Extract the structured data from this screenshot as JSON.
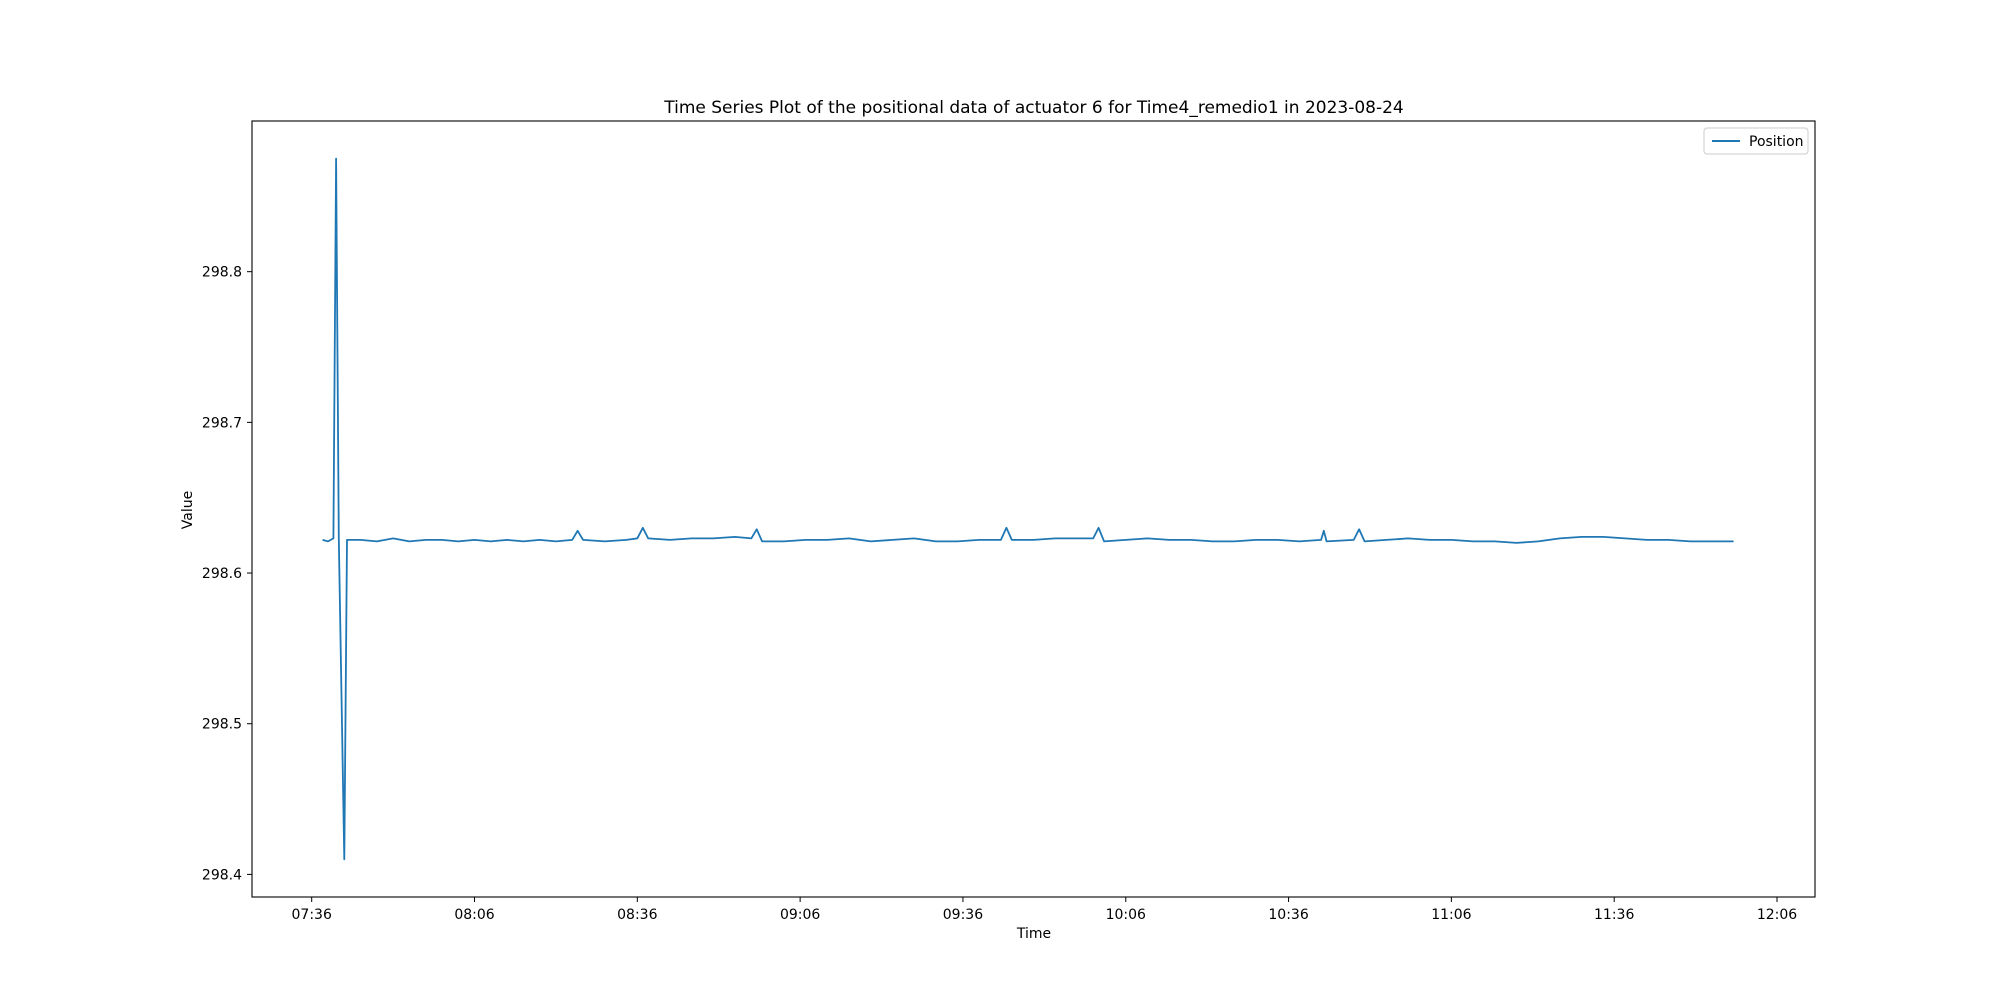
{
  "chart_data": {
    "type": "line",
    "title": "Time Series Plot of the positional data of actuator 6 for Time4_remedio1 in 2023-08-24",
    "xlabel": "Time",
    "ylabel": "Value",
    "xlim": [
      "07:25",
      "12:13"
    ],
    "ylim": [
      298.385,
      298.9
    ],
    "x_ticks": [
      "07:36",
      "08:06",
      "08:36",
      "09:06",
      "09:36",
      "10:06",
      "10:36",
      "11:06",
      "11:36",
      "12:06"
    ],
    "y_ticks": [
      "298.4",
      "298.5",
      "298.6",
      "298.7",
      "298.8"
    ],
    "grid": false,
    "legend": {
      "position": "top-right",
      "entries": [
        "Position"
      ]
    },
    "line_color": "#1f77b4",
    "series": [
      {
        "name": "Position",
        "points": [
          [
            "07:38",
            298.622
          ],
          [
            "07:39",
            298.621
          ],
          [
            "07:40",
            298.623
          ],
          [
            "07:40:30",
            298.875
          ],
          [
            "07:41",
            298.623
          ],
          [
            "07:42",
            298.41
          ],
          [
            "07:42:30",
            298.622
          ],
          [
            "07:45",
            298.622
          ],
          [
            "07:48",
            298.621
          ],
          [
            "07:51",
            298.623
          ],
          [
            "07:54",
            298.621
          ],
          [
            "07:57",
            298.622
          ],
          [
            "08:00",
            298.622
          ],
          [
            "08:03",
            298.621
          ],
          [
            "08:06",
            298.622
          ],
          [
            "08:09",
            298.621
          ],
          [
            "08:12",
            298.622
          ],
          [
            "08:15",
            298.621
          ],
          [
            "08:18",
            298.622
          ],
          [
            "08:21",
            298.621
          ],
          [
            "08:24",
            298.622
          ],
          [
            "08:25",
            298.628
          ],
          [
            "08:26",
            298.622
          ],
          [
            "08:30",
            298.621
          ],
          [
            "08:34",
            298.622
          ],
          [
            "08:36",
            298.623
          ],
          [
            "08:37",
            298.63
          ],
          [
            "08:38",
            298.623
          ],
          [
            "08:42",
            298.622
          ],
          [
            "08:46",
            298.623
          ],
          [
            "08:50",
            298.623
          ],
          [
            "08:54",
            298.624
          ],
          [
            "08:57",
            298.623
          ],
          [
            "08:58",
            298.629
          ],
          [
            "08:59",
            298.621
          ],
          [
            "09:03",
            298.621
          ],
          [
            "09:07",
            298.622
          ],
          [
            "09:11",
            298.622
          ],
          [
            "09:15",
            298.623
          ],
          [
            "09:19",
            298.621
          ],
          [
            "09:23",
            298.622
          ],
          [
            "09:27",
            298.623
          ],
          [
            "09:31",
            298.621
          ],
          [
            "09:35",
            298.621
          ],
          [
            "09:39",
            298.622
          ],
          [
            "09:43",
            298.622
          ],
          [
            "09:44",
            298.63
          ],
          [
            "09:45",
            298.622
          ],
          [
            "09:49",
            298.622
          ],
          [
            "09:53",
            298.623
          ],
          [
            "09:57",
            298.623
          ],
          [
            "10:00",
            298.623
          ],
          [
            "10:01",
            298.63
          ],
          [
            "10:02",
            298.621
          ],
          [
            "10:06",
            298.622
          ],
          [
            "10:10",
            298.623
          ],
          [
            "10:14",
            298.622
          ],
          [
            "10:18",
            298.622
          ],
          [
            "10:22",
            298.621
          ],
          [
            "10:26",
            298.621
          ],
          [
            "10:30",
            298.622
          ],
          [
            "10:34",
            298.622
          ],
          [
            "10:38",
            298.621
          ],
          [
            "10:42",
            298.622
          ],
          [
            "10:42:30",
            298.628
          ],
          [
            "10:43",
            298.621
          ],
          [
            "10:48",
            298.622
          ],
          [
            "10:49",
            298.629
          ],
          [
            "10:50",
            298.621
          ],
          [
            "10:54",
            298.622
          ],
          [
            "10:58",
            298.623
          ],
          [
            "11:02",
            298.622
          ],
          [
            "11:06",
            298.622
          ],
          [
            "11:10",
            298.621
          ],
          [
            "11:14",
            298.621
          ],
          [
            "11:18",
            298.62
          ],
          [
            "11:22",
            298.621
          ],
          [
            "11:26",
            298.623
          ],
          [
            "11:30",
            298.624
          ],
          [
            "11:34",
            298.624
          ],
          [
            "11:38",
            298.623
          ],
          [
            "11:42",
            298.622
          ],
          [
            "11:46",
            298.622
          ],
          [
            "11:50",
            298.621
          ],
          [
            "11:54",
            298.621
          ],
          [
            "11:58",
            298.621
          ]
        ]
      }
    ]
  }
}
